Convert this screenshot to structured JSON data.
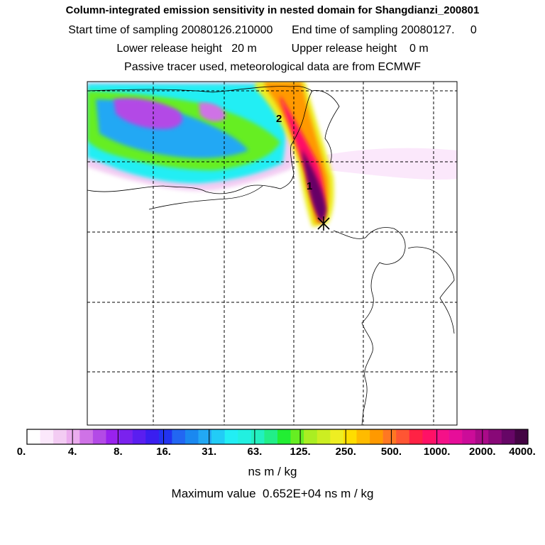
{
  "header": {
    "title": "Column-integrated emission sensitivity in nested domain for Shangdianzi_200801",
    "sampling": "Start time of sampling 20080126.210000      End time of sampling 20080127.     0",
    "release": "Lower release height   20 m           Upper release height    0 m",
    "tracer": "Passive tracer used, meteorological data are from ECMWF"
  },
  "map": {
    "labels": [
      {
        "text": "1",
        "name": "point-label-1"
      },
      {
        "text": "2",
        "name": "point-label-2"
      }
    ],
    "release_marker": "release-point-marker"
  },
  "colorbar": {
    "ticks": [
      "0.",
      "4.",
      "8.",
      "16.",
      "31.",
      "63.",
      "125.",
      "250.",
      "500.",
      "1000.",
      "2000.",
      "4000."
    ],
    "colors": [
      "#ffffff",
      "#fbe8fb",
      "#f3ccf3",
      "#ebacee",
      "#cf72e6",
      "#b34ae6",
      "#9922ee",
      "#7a22ee",
      "#5a1ef0",
      "#3a1ef0",
      "#2233f0",
      "#2266f2",
      "#1a88f0",
      "#22a8f4",
      "#22ccf6",
      "#22eef4",
      "#22f0e0",
      "#22f0c0",
      "#22ee88",
      "#22ee33",
      "#66ee22",
      "#aaee22",
      "#ccee22",
      "#eeee22",
      "#ffdd00",
      "#ffbb00",
      "#ff9900",
      "#ff7722",
      "#ff5533",
      "#ff2244",
      "#ff1166",
      "#f51188",
      "#e60e99",
      "#cc0c99",
      "#aa0a88",
      "#880877",
      "#660666",
      "#440444"
    ],
    "units": "ns m / kg"
  },
  "footer": {
    "max_value": "Maximum value  0.652E+04 ns m / kg"
  }
}
